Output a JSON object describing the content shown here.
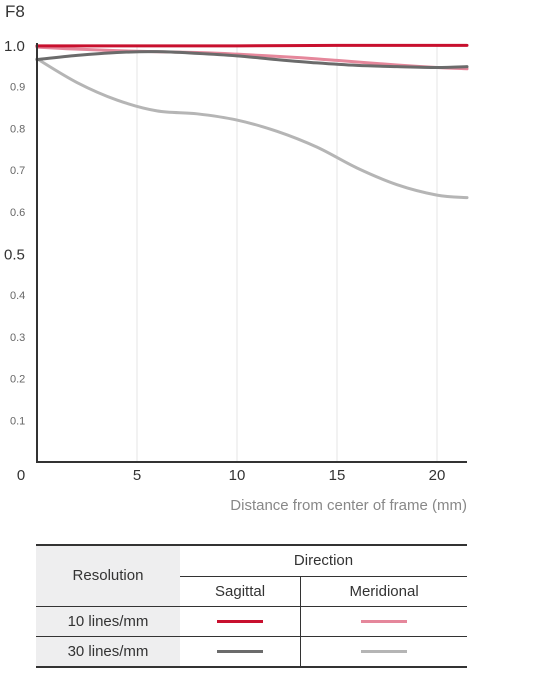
{
  "chart_data": {
    "type": "line",
    "title": "F8",
    "xlabel": "Distance from center of frame (mm)",
    "ylabel": "",
    "xlim": [
      0,
      21.5
    ],
    "ylim": [
      0,
      1.0
    ],
    "x_ticks": [
      "0",
      "5",
      "10",
      "15",
      "20"
    ],
    "x_tick_values": [
      0,
      5,
      10,
      15,
      20
    ],
    "y_ticks": [
      "0.1",
      "0.2",
      "0.3",
      "0.4",
      "0.5",
      "0.6",
      "0.7",
      "0.8",
      "0.9",
      "1.0"
    ],
    "y_tick_values": [
      0.1,
      0.2,
      0.3,
      0.4,
      0.5,
      0.6,
      0.7,
      0.8,
      0.9,
      1.0
    ],
    "grid": "vertical",
    "series": [
      {
        "name": "10 lines/mm Sagittal",
        "color": "#c8102e",
        "x": [
          0,
          5,
          10,
          15,
          20,
          21.5
        ],
        "y": [
          0.998,
          0.998,
          0.998,
          0.999,
          0.999,
          0.999
        ]
      },
      {
        "name": "10 lines/mm Meridional",
        "color": "#e5879b",
        "x": [
          0,
          2,
          5,
          8,
          10,
          13,
          15,
          18,
          20,
          21.5
        ],
        "y": [
          0.995,
          0.99,
          0.985,
          0.982,
          0.978,
          0.97,
          0.963,
          0.952,
          0.946,
          0.943
        ]
      },
      {
        "name": "30 lines/mm Sagittal",
        "color": "#6b6b6b",
        "x": [
          0,
          2,
          4,
          6,
          8,
          10,
          12,
          14,
          16,
          18,
          20,
          21.5
        ],
        "y": [
          0.965,
          0.975,
          0.982,
          0.984,
          0.98,
          0.974,
          0.965,
          0.957,
          0.951,
          0.948,
          0.946,
          0.948
        ]
      },
      {
        "name": "30 lines/mm Meridional",
        "color": "#b5b5b5",
        "x": [
          0,
          2,
          4,
          6,
          8,
          10,
          12,
          14,
          16,
          18,
          20,
          21.5
        ],
        "y": [
          0.967,
          0.91,
          0.868,
          0.842,
          0.835,
          0.82,
          0.793,
          0.755,
          0.705,
          0.665,
          0.64,
          0.634
        ]
      }
    ]
  },
  "legend": {
    "resolution_label": "Resolution",
    "direction_label": "Direction",
    "sagittal_label": "Sagittal",
    "meridional_label": "Meridional",
    "rows": [
      {
        "label": "10 lines/mm",
        "sagittal_color": "#c8102e",
        "meridional_color": "#e5879b"
      },
      {
        "label": "30 lines/mm",
        "sagittal_color": "#6b6b6b",
        "meridional_color": "#b5b5b5"
      }
    ]
  }
}
